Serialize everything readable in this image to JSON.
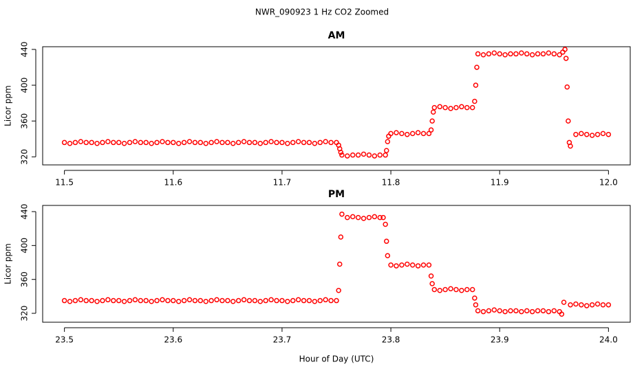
{
  "title": "NWR_090923  1 Hz CO2 Zoomed",
  "chart_data": [
    {
      "type": "scatter",
      "title": "AM",
      "ylabel": "Licor ppm",
      "color": "#ff0000",
      "marker": "open-circle",
      "xlim": [
        11.48,
        12.02
      ],
      "ylim": [
        311,
        443
      ],
      "xticks": [
        11.5,
        11.6,
        11.7,
        11.8,
        11.9,
        {
          "value": 12,
          "label": "12.0"
        }
      ],
      "yticks": [
        320,
        360,
        400,
        440
      ],
      "x": [
        11.5,
        11.505,
        11.51,
        11.515,
        11.52,
        11.525,
        11.53,
        11.535,
        11.54,
        11.545,
        11.55,
        11.555,
        11.56,
        11.565,
        11.57,
        11.575,
        11.58,
        11.585,
        11.59,
        11.595,
        11.6,
        11.605,
        11.61,
        11.615,
        11.62,
        11.625,
        11.63,
        11.635,
        11.64,
        11.645,
        11.65,
        11.655,
        11.66,
        11.665,
        11.67,
        11.675,
        11.68,
        11.685,
        11.69,
        11.695,
        11.7,
        11.705,
        11.71,
        11.715,
        11.72,
        11.725,
        11.73,
        11.735,
        11.74,
        11.745,
        11.75,
        11.752,
        11.753,
        11.754,
        11.755,
        11.76,
        11.765,
        11.77,
        11.775,
        11.78,
        11.785,
        11.79,
        11.795,
        11.796,
        11.797,
        11.798,
        11.8,
        11.805,
        11.81,
        11.815,
        11.82,
        11.825,
        11.83,
        11.835,
        11.837,
        11.838,
        11.839,
        11.84,
        11.845,
        11.85,
        11.855,
        11.86,
        11.865,
        11.87,
        11.875,
        11.877,
        11.878,
        11.879,
        11.88,
        11.885,
        11.89,
        11.895,
        11.9,
        11.905,
        11.91,
        11.915,
        11.92,
        11.925,
        11.93,
        11.935,
        11.94,
        11.945,
        11.95,
        11.955,
        11.958,
        11.96,
        11.961,
        11.962,
        11.963,
        11.964,
        11.965,
        11.97,
        11.975,
        11.98,
        11.985,
        11.99,
        11.995,
        12.0
      ],
      "y": [
        336,
        335,
        336,
        337,
        336,
        336,
        335,
        336,
        337,
        336,
        336,
        335,
        336,
        337,
        336,
        336,
        335,
        336,
        337,
        336,
        336,
        335,
        336,
        337,
        336,
        336,
        335,
        336,
        337,
        336,
        336,
        335,
        336,
        337,
        336,
        336,
        335,
        336,
        337,
        336,
        336,
        335,
        336,
        337,
        336,
        336,
        335,
        336,
        337,
        336,
        336,
        333,
        329,
        325,
        322,
        321,
        322,
        322,
        323,
        322,
        321,
        322,
        322,
        327,
        337,
        343,
        346,
        347,
        346,
        345,
        346,
        347,
        346,
        346,
        350,
        360,
        370,
        375,
        376,
        375,
        374,
        375,
        376,
        375,
        375,
        382,
        400,
        420,
        435,
        434,
        435,
        436,
        435,
        434,
        435,
        435,
        436,
        435,
        434,
        435,
        435,
        436,
        435,
        434,
        437,
        440,
        430,
        398,
        360,
        336,
        332,
        345,
        346,
        345,
        344,
        345,
        346,
        345
      ]
    },
    {
      "type": "scatter",
      "title": "PM",
      "ylabel": "Licor ppm",
      "xlabel": "Hour of Day (UTC)",
      "color": "#ff0000",
      "marker": "open-circle",
      "xlim": [
        23.48,
        24.02
      ],
      "ylim": [
        309.5,
        447.3
      ],
      "xticks": [
        23.5,
        23.6,
        23.7,
        23.8,
        23.9,
        {
          "value": 24,
          "label": "24.0"
        }
      ],
      "yticks": [
        320,
        360,
        400,
        440
      ],
      "x": [
        23.5,
        23.505,
        23.51,
        23.515,
        23.52,
        23.525,
        23.53,
        23.535,
        23.54,
        23.545,
        23.55,
        23.555,
        23.56,
        23.565,
        23.57,
        23.575,
        23.58,
        23.585,
        23.59,
        23.595,
        23.6,
        23.605,
        23.61,
        23.615,
        23.62,
        23.625,
        23.63,
        23.635,
        23.64,
        23.645,
        23.65,
        23.655,
        23.66,
        23.665,
        23.67,
        23.675,
        23.68,
        23.685,
        23.69,
        23.695,
        23.7,
        23.705,
        23.71,
        23.715,
        23.72,
        23.725,
        23.73,
        23.735,
        23.74,
        23.745,
        23.75,
        23.752,
        23.753,
        23.754,
        23.755,
        23.76,
        23.765,
        23.77,
        23.775,
        23.78,
        23.785,
        23.79,
        23.793,
        23.795,
        23.796,
        23.797,
        23.8,
        23.805,
        23.81,
        23.815,
        23.82,
        23.825,
        23.83,
        23.835,
        23.837,
        23.838,
        23.84,
        23.845,
        23.85,
        23.855,
        23.86,
        23.865,
        23.87,
        23.875,
        23.877,
        23.878,
        23.88,
        23.885,
        23.89,
        23.895,
        23.9,
        23.905,
        23.91,
        23.915,
        23.92,
        23.925,
        23.93,
        23.935,
        23.94,
        23.945,
        23.95,
        23.955,
        23.957,
        23.959,
        23.965,
        23.97,
        23.975,
        23.98,
        23.985,
        23.99,
        23.995,
        24.0
      ],
      "y": [
        335,
        334,
        335,
        336,
        335,
        335,
        334,
        335,
        336,
        335,
        335,
        334,
        335,
        336,
        335,
        335,
        334,
        335,
        336,
        335,
        335,
        334,
        335,
        336,
        335,
        335,
        334,
        335,
        336,
        335,
        335,
        334,
        335,
        336,
        335,
        335,
        334,
        335,
        336,
        335,
        335,
        334,
        335,
        336,
        335,
        335,
        334,
        335,
        336,
        335,
        335,
        347,
        378,
        410,
        437,
        433,
        434,
        433,
        432,
        433,
        434,
        433,
        433,
        425,
        405,
        388,
        377,
        376,
        377,
        378,
        377,
        376,
        377,
        377,
        364,
        355,
        348,
        347,
        348,
        349,
        348,
        347,
        348,
        348,
        338,
        330,
        323,
        322,
        323,
        324,
        323,
        322,
        323,
        323,
        322,
        323,
        322,
        323,
        323,
        322,
        323,
        322,
        319,
        333,
        330,
        331,
        330,
        329,
        330,
        331,
        330,
        330
      ]
    }
  ]
}
